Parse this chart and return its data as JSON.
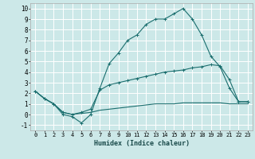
{
  "xlabel": "Humidex (Indice chaleur)",
  "bg_color": "#cce8e8",
  "grid_color": "#ffffff",
  "line_color": "#1a6e6e",
  "xlim": [
    -0.5,
    23.5
  ],
  "ylim": [
    -1.5,
    10.5
  ],
  "xticks": [
    0,
    1,
    2,
    3,
    4,
    5,
    6,
    7,
    8,
    9,
    10,
    11,
    12,
    13,
    14,
    15,
    16,
    17,
    18,
    19,
    20,
    21,
    22,
    23
  ],
  "yticks": [
    -1,
    0,
    1,
    2,
    3,
    4,
    5,
    6,
    7,
    8,
    9,
    10
  ],
  "line1_x": [
    0,
    1,
    2,
    3,
    4,
    5,
    6,
    7,
    8,
    9,
    10,
    11,
    12,
    13,
    14,
    15,
    16,
    17,
    18,
    19,
    20,
    21,
    22,
    23
  ],
  "line1_y": [
    2.2,
    1.5,
    1.0,
    0.0,
    -0.2,
    -0.8,
    0.0,
    2.5,
    4.8,
    5.8,
    7.0,
    7.5,
    8.5,
    9.0,
    9.0,
    9.5,
    10.0,
    9.0,
    7.5,
    5.5,
    4.5,
    2.5,
    1.2,
    1.2
  ],
  "line2_x": [
    0,
    1,
    2,
    3,
    4,
    5,
    6,
    7,
    8,
    9,
    10,
    11,
    12,
    13,
    14,
    15,
    16,
    17,
    18,
    19,
    20,
    21,
    22,
    23
  ],
  "line2_y": [
    2.2,
    1.5,
    1.0,
    0.2,
    0.0,
    0.2,
    0.5,
    2.3,
    2.8,
    3.0,
    3.2,
    3.4,
    3.6,
    3.8,
    4.0,
    4.1,
    4.2,
    4.4,
    4.5,
    4.7,
    4.6,
    3.3,
    1.2,
    1.2
  ],
  "line3_x": [
    0,
    1,
    2,
    3,
    4,
    5,
    6,
    7,
    8,
    9,
    10,
    11,
    12,
    13,
    14,
    15,
    16,
    17,
    18,
    19,
    20,
    21,
    22,
    23
  ],
  "line3_y": [
    2.2,
    1.5,
    1.0,
    0.2,
    0.0,
    0.1,
    0.2,
    0.4,
    0.5,
    0.6,
    0.7,
    0.8,
    0.9,
    1.0,
    1.0,
    1.0,
    1.1,
    1.1,
    1.1,
    1.1,
    1.1,
    1.0,
    1.0,
    1.0
  ]
}
